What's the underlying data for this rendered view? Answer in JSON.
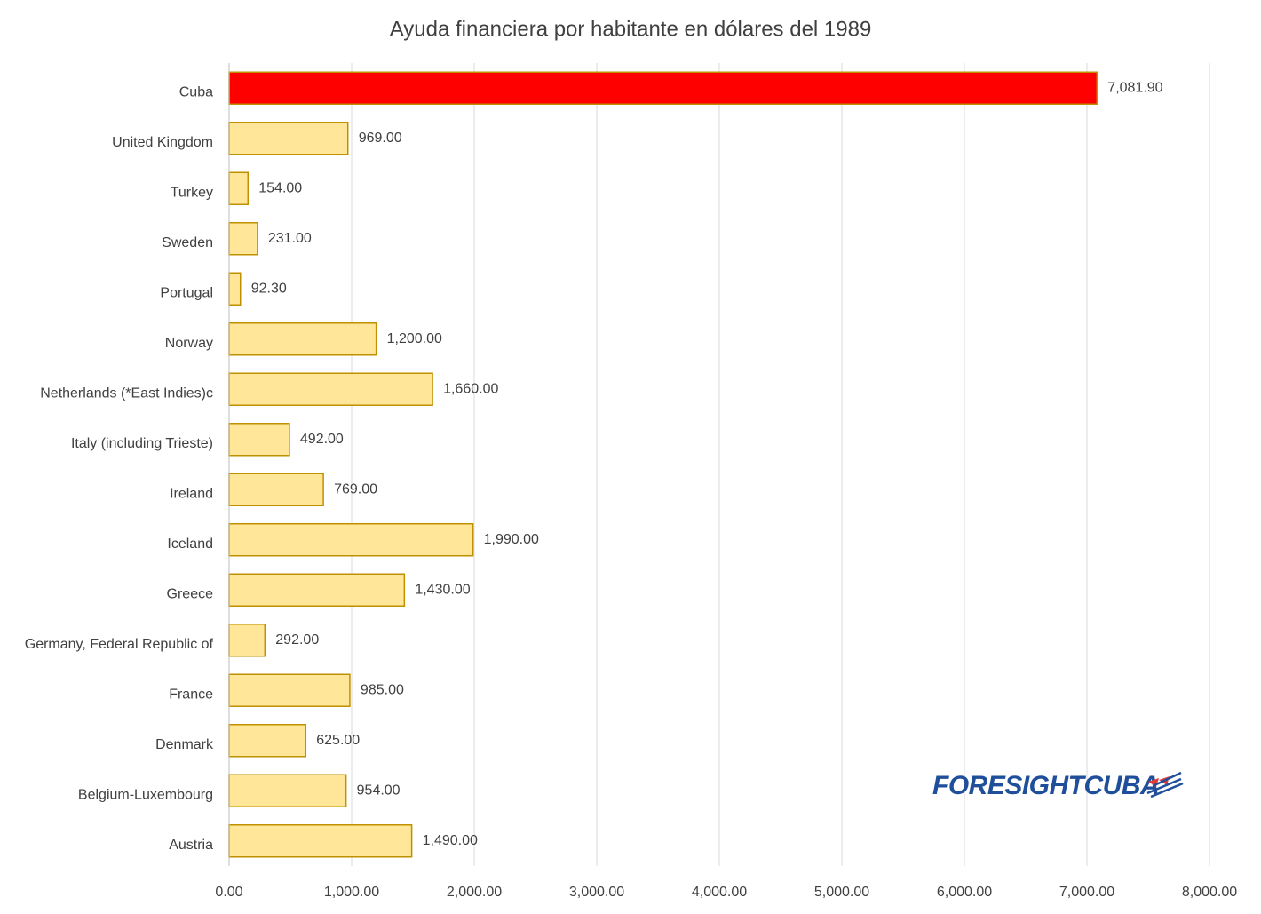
{
  "chart_data": {
    "type": "barh",
    "title": "Ayuda financiera por habitante en dólares del 1989",
    "categories": [
      "Cuba",
      "United Kingdom",
      "Turkey",
      "Sweden",
      "Portugal",
      "Norway",
      "Netherlands (*East Indies)c",
      "Italy (including Trieste)",
      "Ireland",
      "Iceland",
      "Greece",
      "Germany, Federal Republic of",
      "France",
      "Denmark",
      "Belgium-Luxembourg",
      "Austria"
    ],
    "values": [
      7081.9,
      969,
      154,
      231,
      92.3,
      1200,
      1660,
      492,
      769,
      1990,
      1430,
      292,
      985,
      625,
      954,
      1490
    ],
    "value_labels": [
      "7,081.90",
      "969.00",
      "154.00",
      "231.00",
      "92.30",
      "1,200.00",
      "1,660.00",
      "492.00",
      "769.00",
      "1,990.00",
      "1,430.00",
      "292.00",
      "985.00",
      "625.00",
      "954.00",
      "1,490.00"
    ],
    "colors": [
      "#ff0000",
      "#ffe699",
      "#ffe699",
      "#ffe699",
      "#ffe699",
      "#ffe699",
      "#ffe699",
      "#ffe699",
      "#ffe699",
      "#ffe699",
      "#ffe699",
      "#ffe699",
      "#ffe699",
      "#ffe699",
      "#ffe699",
      "#ffe699"
    ],
    "edgecolor": "#bf9000",
    "xlim": [
      0,
      8000
    ],
    "xticks": [
      {
        "value": 0,
        "label": "0.00"
      },
      {
        "value": 1000,
        "label": "1,000.00"
      },
      {
        "value": 2000,
        "label": "2,000.00"
      },
      {
        "value": 3000,
        "label": "3,000.00"
      },
      {
        "value": 4000,
        "label": "4,000.00"
      },
      {
        "value": 5000,
        "label": "5,000.00"
      },
      {
        "value": 6000,
        "label": "6,000.00"
      },
      {
        "value": 7000,
        "label": "7,000.00"
      },
      {
        "value": 8000,
        "label": "8,000.00"
      }
    ],
    "grid": true,
    "logo": "FORESIGHTCUBA"
  }
}
